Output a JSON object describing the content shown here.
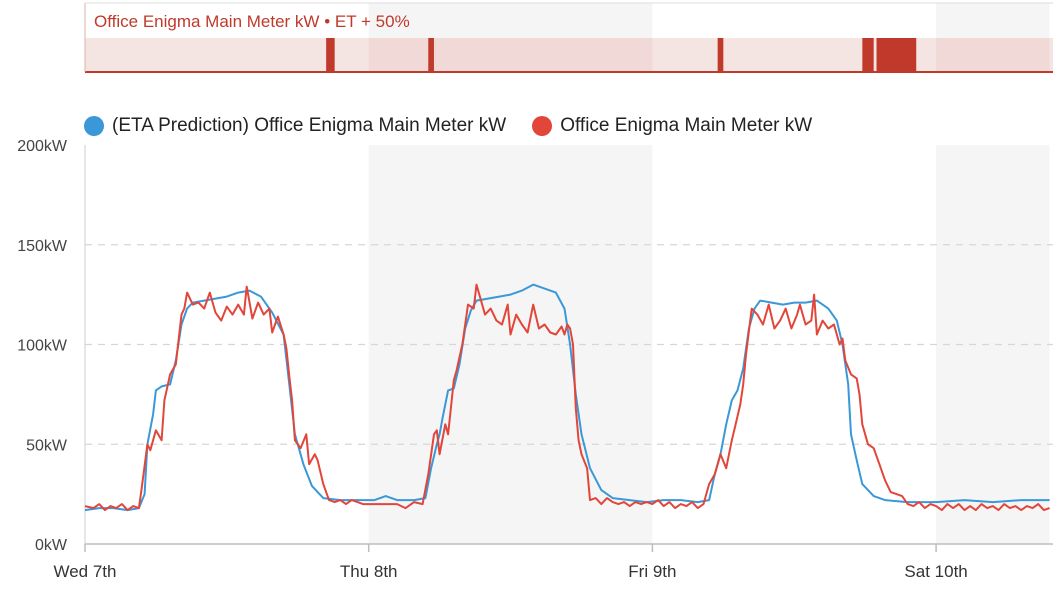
{
  "colors": {
    "prediction": "#3a98d8",
    "actual": "#e2463a",
    "band": "#c0392b",
    "band_bg": "#f4e2df",
    "grid": "#d6d6d6",
    "shade": "#f5f5f5"
  },
  "anomaly_band": {
    "title": "Office Enigma Main Meter kW • ET + 50%",
    "markers": [
      {
        "start": 0.85,
        "end": 0.88
      },
      {
        "start": 1.21,
        "end": 1.23
      },
      {
        "start": 2.23,
        "end": 2.25
      },
      {
        "start": 2.74,
        "end": 2.78
      },
      {
        "start": 2.79,
        "end": 2.93
      }
    ]
  },
  "legend": {
    "prediction_label": "(ETA Prediction) Office Enigma Main Meter kW",
    "actual_label": "Office Enigma Main Meter kW"
  },
  "chart_data": {
    "type": "line",
    "x_unit": "days since Wed 7th 00:00",
    "xlim": [
      0,
      3.4
    ],
    "ylim": [
      0,
      200
    ],
    "y_ticks": [
      0,
      50,
      100,
      150,
      200
    ],
    "y_tick_labels": [
      "0kW",
      "50kW",
      "100kW",
      "150kW",
      "200kW"
    ],
    "x_ticks": [
      0,
      1,
      2,
      3
    ],
    "x_tick_labels": [
      "Wed 7th",
      "Thu 8th",
      "Fri 9th",
      "Sat 10th"
    ],
    "shaded_ranges": [
      [
        1,
        2
      ],
      [
        3,
        3.4
      ]
    ],
    "grid": "horizontal dashed",
    "legend_position": "top-left",
    "series": [
      {
        "name": "(ETA Prediction) Office Enigma Main Meter kW",
        "points": [
          [
            0.0,
            17
          ],
          [
            0.05,
            18
          ],
          [
            0.1,
            18
          ],
          [
            0.15,
            17
          ],
          [
            0.19,
            18
          ],
          [
            0.21,
            25
          ],
          [
            0.22,
            50
          ],
          [
            0.24,
            65
          ],
          [
            0.25,
            77
          ],
          [
            0.27,
            79
          ],
          [
            0.3,
            80
          ],
          [
            0.32,
            92
          ],
          [
            0.34,
            110
          ],
          [
            0.36,
            118
          ],
          [
            0.38,
            121
          ],
          [
            0.42,
            122
          ],
          [
            0.46,
            123
          ],
          [
            0.5,
            124
          ],
          [
            0.54,
            126
          ],
          [
            0.58,
            127
          ],
          [
            0.62,
            124
          ],
          [
            0.66,
            116
          ],
          [
            0.7,
            105
          ],
          [
            0.72,
            80
          ],
          [
            0.74,
            55
          ],
          [
            0.77,
            40
          ],
          [
            0.8,
            29
          ],
          [
            0.84,
            23
          ],
          [
            0.9,
            22
          ],
          [
            0.96,
            22
          ],
          [
            1.02,
            22
          ],
          [
            1.06,
            24
          ],
          [
            1.1,
            22
          ],
          [
            1.16,
            22
          ],
          [
            1.2,
            23
          ],
          [
            1.22,
            38
          ],
          [
            1.24,
            50
          ],
          [
            1.25,
            55
          ],
          [
            1.26,
            63
          ],
          [
            1.28,
            77
          ],
          [
            1.3,
            78
          ],
          [
            1.32,
            90
          ],
          [
            1.34,
            108
          ],
          [
            1.36,
            117
          ],
          [
            1.38,
            122
          ],
          [
            1.42,
            123
          ],
          [
            1.46,
            124
          ],
          [
            1.5,
            125
          ],
          [
            1.54,
            127
          ],
          [
            1.58,
            130
          ],
          [
            1.62,
            128
          ],
          [
            1.66,
            126
          ],
          [
            1.69,
            118
          ],
          [
            1.71,
            100
          ],
          [
            1.73,
            75
          ],
          [
            1.75,
            55
          ],
          [
            1.78,
            38
          ],
          [
            1.82,
            27
          ],
          [
            1.86,
            23
          ],
          [
            1.92,
            22
          ],
          [
            1.98,
            21
          ],
          [
            2.04,
            22
          ],
          [
            2.1,
            22
          ],
          [
            2.16,
            21
          ],
          [
            2.2,
            22
          ],
          [
            2.22,
            35
          ],
          [
            2.24,
            45
          ],
          [
            2.26,
            60
          ],
          [
            2.28,
            72
          ],
          [
            2.3,
            77
          ],
          [
            2.32,
            88
          ],
          [
            2.34,
            108
          ],
          [
            2.36,
            118
          ],
          [
            2.38,
            122
          ],
          [
            2.42,
            121
          ],
          [
            2.46,
            120
          ],
          [
            2.5,
            121
          ],
          [
            2.54,
            121
          ],
          [
            2.58,
            122
          ],
          [
            2.62,
            118
          ],
          [
            2.65,
            112
          ],
          [
            2.67,
            100
          ],
          [
            2.69,
            80
          ],
          [
            2.7,
            55
          ],
          [
            2.72,
            42
          ],
          [
            2.74,
            30
          ],
          [
            2.78,
            24
          ],
          [
            2.82,
            22
          ],
          [
            2.9,
            21
          ],
          [
            3.0,
            21
          ],
          [
            3.1,
            22
          ],
          [
            3.2,
            21
          ],
          [
            3.3,
            22
          ],
          [
            3.4,
            22
          ]
        ]
      },
      {
        "name": "Office Enigma Main Meter kW",
        "points": [
          [
            0.0,
            19
          ],
          [
            0.03,
            18
          ],
          [
            0.05,
            20
          ],
          [
            0.07,
            17
          ],
          [
            0.09,
            19
          ],
          [
            0.11,
            18
          ],
          [
            0.13,
            20
          ],
          [
            0.15,
            17
          ],
          [
            0.17,
            19
          ],
          [
            0.19,
            18
          ],
          [
            0.2,
            28
          ],
          [
            0.22,
            50
          ],
          [
            0.23,
            47
          ],
          [
            0.25,
            57
          ],
          [
            0.27,
            52
          ],
          [
            0.28,
            72
          ],
          [
            0.3,
            85
          ],
          [
            0.32,
            90
          ],
          [
            0.34,
            115
          ],
          [
            0.35,
            118
          ],
          [
            0.36,
            126
          ],
          [
            0.38,
            120
          ],
          [
            0.4,
            121
          ],
          [
            0.42,
            118
          ],
          [
            0.44,
            126
          ],
          [
            0.46,
            116
          ],
          [
            0.48,
            112
          ],
          [
            0.5,
            119
          ],
          [
            0.52,
            115
          ],
          [
            0.54,
            120
          ],
          [
            0.56,
            115
          ],
          [
            0.57,
            129
          ],
          [
            0.59,
            113
          ],
          [
            0.61,
            121
          ],
          [
            0.63,
            115
          ],
          [
            0.65,
            118
          ],
          [
            0.66,
            106
          ],
          [
            0.68,
            114
          ],
          [
            0.7,
            105
          ],
          [
            0.71,
            98
          ],
          [
            0.72,
            84
          ],
          [
            0.73,
            72
          ],
          [
            0.74,
            52
          ],
          [
            0.76,
            48
          ],
          [
            0.78,
            55
          ],
          [
            0.79,
            40
          ],
          [
            0.81,
            45
          ],
          [
            0.82,
            42
          ],
          [
            0.84,
            30
          ],
          [
            0.86,
            22
          ],
          [
            0.88,
            21
          ],
          [
            0.9,
            22
          ],
          [
            0.92,
            20
          ],
          [
            0.94,
            22
          ],
          [
            0.96,
            21
          ],
          [
            0.98,
            20
          ],
          [
            1.0,
            20
          ],
          [
            1.05,
            20
          ],
          [
            1.1,
            20
          ],
          [
            1.13,
            18
          ],
          [
            1.16,
            21
          ],
          [
            1.19,
            20
          ],
          [
            1.21,
            35
          ],
          [
            1.23,
            55
          ],
          [
            1.24,
            57
          ],
          [
            1.25,
            45
          ],
          [
            1.27,
            60
          ],
          [
            1.28,
            55
          ],
          [
            1.3,
            82
          ],
          [
            1.31,
            87
          ],
          [
            1.33,
            100
          ],
          [
            1.34,
            110
          ],
          [
            1.35,
            120
          ],
          [
            1.37,
            118
          ],
          [
            1.38,
            130
          ],
          [
            1.4,
            120
          ],
          [
            1.41,
            115
          ],
          [
            1.43,
            118
          ],
          [
            1.45,
            112
          ],
          [
            1.47,
            110
          ],
          [
            1.49,
            120
          ],
          [
            1.5,
            105
          ],
          [
            1.52,
            115
          ],
          [
            1.54,
            110
          ],
          [
            1.56,
            106
          ],
          [
            1.58,
            120
          ],
          [
            1.6,
            108
          ],
          [
            1.62,
            110
          ],
          [
            1.64,
            106
          ],
          [
            1.66,
            105
          ],
          [
            1.68,
            109
          ],
          [
            1.69,
            105
          ],
          [
            1.7,
            110
          ],
          [
            1.71,
            108
          ],
          [
            1.72,
            100
          ],
          [
            1.73,
            68
          ],
          [
            1.74,
            52
          ],
          [
            1.75,
            45
          ],
          [
            1.77,
            38
          ],
          [
            1.78,
            22
          ],
          [
            1.8,
            23
          ],
          [
            1.82,
            20
          ],
          [
            1.84,
            23
          ],
          [
            1.86,
            21
          ],
          [
            1.88,
            20
          ],
          [
            1.9,
            21
          ],
          [
            1.92,
            19
          ],
          [
            1.94,
            21
          ],
          [
            1.96,
            20
          ],
          [
            1.98,
            21
          ],
          [
            2.0,
            20
          ],
          [
            2.02,
            22
          ],
          [
            2.04,
            19
          ],
          [
            2.06,
            21
          ],
          [
            2.08,
            18
          ],
          [
            2.1,
            20
          ],
          [
            2.12,
            19
          ],
          [
            2.14,
            21
          ],
          [
            2.16,
            18
          ],
          [
            2.18,
            20
          ],
          [
            2.2,
            30
          ],
          [
            2.22,
            35
          ],
          [
            2.24,
            45
          ],
          [
            2.26,
            38
          ],
          [
            2.28,
            52
          ],
          [
            2.29,
            58
          ],
          [
            2.31,
            70
          ],
          [
            2.32,
            80
          ],
          [
            2.33,
            95
          ],
          [
            2.35,
            118
          ],
          [
            2.37,
            115
          ],
          [
            2.39,
            110
          ],
          [
            2.41,
            120
          ],
          [
            2.43,
            108
          ],
          [
            2.45,
            112
          ],
          [
            2.47,
            118
          ],
          [
            2.49,
            108
          ],
          [
            2.51,
            115
          ],
          [
            2.52,
            120
          ],
          [
            2.54,
            110
          ],
          [
            2.56,
            112
          ],
          [
            2.57,
            125
          ],
          [
            2.58,
            105
          ],
          [
            2.6,
            112
          ],
          [
            2.62,
            108
          ],
          [
            2.64,
            110
          ],
          [
            2.66,
            100
          ],
          [
            2.67,
            103
          ],
          [
            2.68,
            92
          ],
          [
            2.7,
            85
          ],
          [
            2.72,
            83
          ],
          [
            2.73,
            75
          ],
          [
            2.74,
            60
          ],
          [
            2.76,
            50
          ],
          [
            2.78,
            48
          ],
          [
            2.8,
            40
          ],
          [
            2.82,
            32
          ],
          [
            2.84,
            26
          ],
          [
            2.86,
            25
          ],
          [
            2.88,
            24
          ],
          [
            2.9,
            20
          ],
          [
            2.92,
            19
          ],
          [
            2.94,
            21
          ],
          [
            2.96,
            18
          ],
          [
            2.98,
            20
          ],
          [
            3.0,
            19
          ],
          [
            3.02,
            17
          ],
          [
            3.04,
            20
          ],
          [
            3.06,
            18
          ],
          [
            3.08,
            20
          ],
          [
            3.1,
            17
          ],
          [
            3.12,
            19
          ],
          [
            3.14,
            17
          ],
          [
            3.16,
            20
          ],
          [
            3.18,
            18
          ],
          [
            3.2,
            19
          ],
          [
            3.22,
            17
          ],
          [
            3.24,
            20
          ],
          [
            3.26,
            18
          ],
          [
            3.28,
            19
          ],
          [
            3.3,
            17
          ],
          [
            3.32,
            19
          ],
          [
            3.34,
            18
          ],
          [
            3.36,
            20
          ],
          [
            3.38,
            17
          ],
          [
            3.4,
            18
          ]
        ]
      }
    ]
  }
}
